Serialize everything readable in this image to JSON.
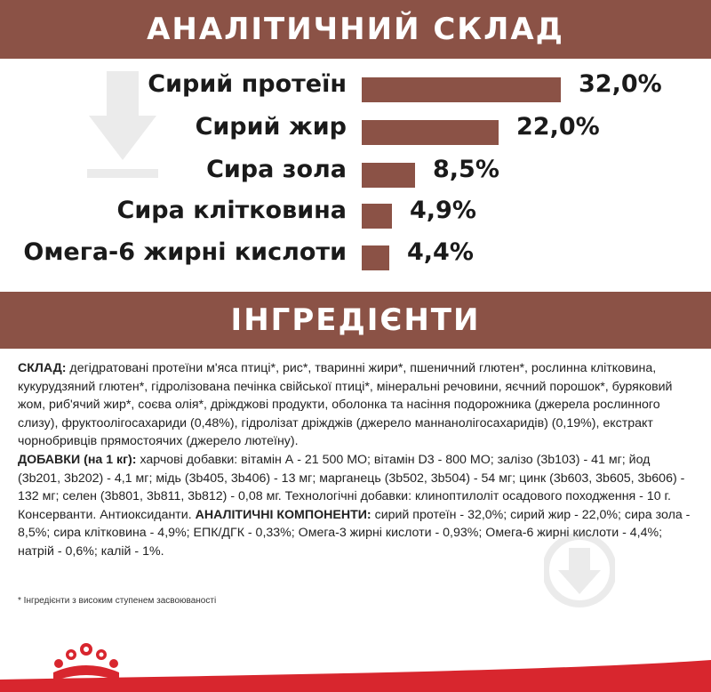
{
  "analytic": {
    "heading": "АНАЛІТИЧНИЙ СКЛАД",
    "items": [
      {
        "label": "Сирий протеїн",
        "value": "32,0%",
        "percent": 32.0
      },
      {
        "label": "Сирий жир",
        "value": "22,0%",
        "percent": 22.0
      },
      {
        "label": "Сира зола",
        "value": "8,5%",
        "percent": 8.5
      },
      {
        "label": "Сира клітковина",
        "value": "4,9%",
        "percent": 4.9
      },
      {
        "label": "Омега-6 жирні кислоти",
        "value": "4,4%",
        "percent": 4.4
      }
    ],
    "bar_color": "#8b5246"
  },
  "chart_data": {
    "type": "bar",
    "orientation": "horizontal",
    "categories": [
      "Сирий протеїн",
      "Сирий жир",
      "Сира зола",
      "Сира клітковина",
      "Омега-6 жирні кислоти"
    ],
    "values": [
      32.0,
      22.0,
      8.5,
      4.9,
      4.4
    ],
    "data_labels": [
      "32,0%",
      "22,0%",
      "8,5%",
      "4,9%",
      "4,4%"
    ],
    "title": "АНАЛІТИЧНИЙ СКЛАД",
    "grid": false,
    "legend": "none"
  },
  "ingredients": {
    "heading": "ІНГРЕДІЄНТИ",
    "composition_label": "СКЛАД:",
    "composition_text": " дегідратовані протеїни м'яса птиці*, рис*, тваринні жири*, пшеничний глютен*, рослинна клітковина, кукурудзяний глютен*, гідролізована печінка свійської птиці*, мінеральні речовини, яєчний порошок*, буряковий жом, риб'ячий жир*, соєва олія*, дріжджові продукти, оболонка та насіння подорожника (джерела рослинного слизу), фруктоолігосахариди (0,48%), гідролізат дріжджів (джерело маннанолігосахаридів) (0,19%), екстракт чорнобривців прямостоячих (джерело лютеїну).",
    "additives_label": "ДОБАВКИ (на 1 кг):",
    "additives_text": " харчові добавки: вітамін А - 21 500 МО; вітамін D3 - 800 МО; залізо (3b103) - 41 мг; йод (3b201, 3b202) - 4,1 мг; мідь (3b405, 3b406) - 13 мг; марганець (3b502, 3b504) - 54 мг; цинк (3b603, 3b605, 3b606) - 132 мг; селен (3b801, 3b811, 3b812) - 0,08 мг. Технологічні добавки: клиноптилоліт осадового походження - 10 г. Консерванти. Антиоксиданти. ",
    "analytic_label": "АНАЛІТИЧНІ КОМПОНЕНТИ:",
    "analytic_text": " сирий протеїн - 32,0%; сирий жир - 22,0%; сира зола - 8,5%; сира клітковина - 4,9%; ЕПК/ДГК - 0,33%; Омега-3 жирні кислоти - 0,93%; Омега-6 жирні кислоти - 4,4%; натрій - 0,6%; калій - 1%.",
    "footnote": "* Інгредієнти з високим ступенем засвоюваності"
  },
  "colors": {
    "brand_brown": "#8b5246",
    "brand_red": "#d8262e"
  },
  "icons": {
    "watermark": "download-arrow-icon",
    "logo": "royal-canin-crown-icon"
  }
}
